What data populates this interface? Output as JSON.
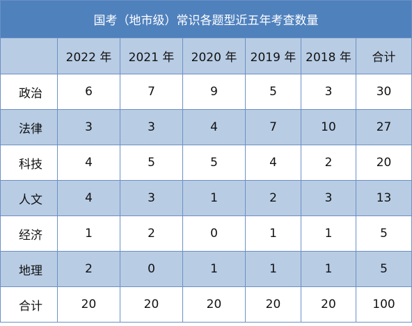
{
  "table": {
    "title": "国考（地市级）常识各题型近五年考查数量",
    "corner": "",
    "columns": [
      "2022 年",
      "2021 年",
      "2020 年",
      "2019 年",
      "2018 年",
      "合计"
    ],
    "rows": [
      {
        "label": "政治",
        "values": [
          "6",
          "7",
          "9",
          "5",
          "3",
          "30"
        ]
      },
      {
        "label": "法律",
        "values": [
          "3",
          "3",
          "4",
          "7",
          "10",
          "27"
        ]
      },
      {
        "label": "科技",
        "values": [
          "4",
          "5",
          "5",
          "4",
          "2",
          "20"
        ]
      },
      {
        "label": "人文",
        "values": [
          "4",
          "3",
          "1",
          "2",
          "3",
          "13"
        ]
      },
      {
        "label": "经济",
        "values": [
          "1",
          "2",
          "0",
          "1",
          "1",
          "5"
        ]
      },
      {
        "label": "地理",
        "values": [
          "2",
          "0",
          "1",
          "1",
          "1",
          "5"
        ]
      },
      {
        "label": "合计",
        "values": [
          "20",
          "20",
          "20",
          "20",
          "20",
          "100"
        ]
      }
    ]
  },
  "colors": {
    "title_bg": "#4f81bd",
    "band_bg": "#b8cce4",
    "border": "#6b8fc4"
  }
}
